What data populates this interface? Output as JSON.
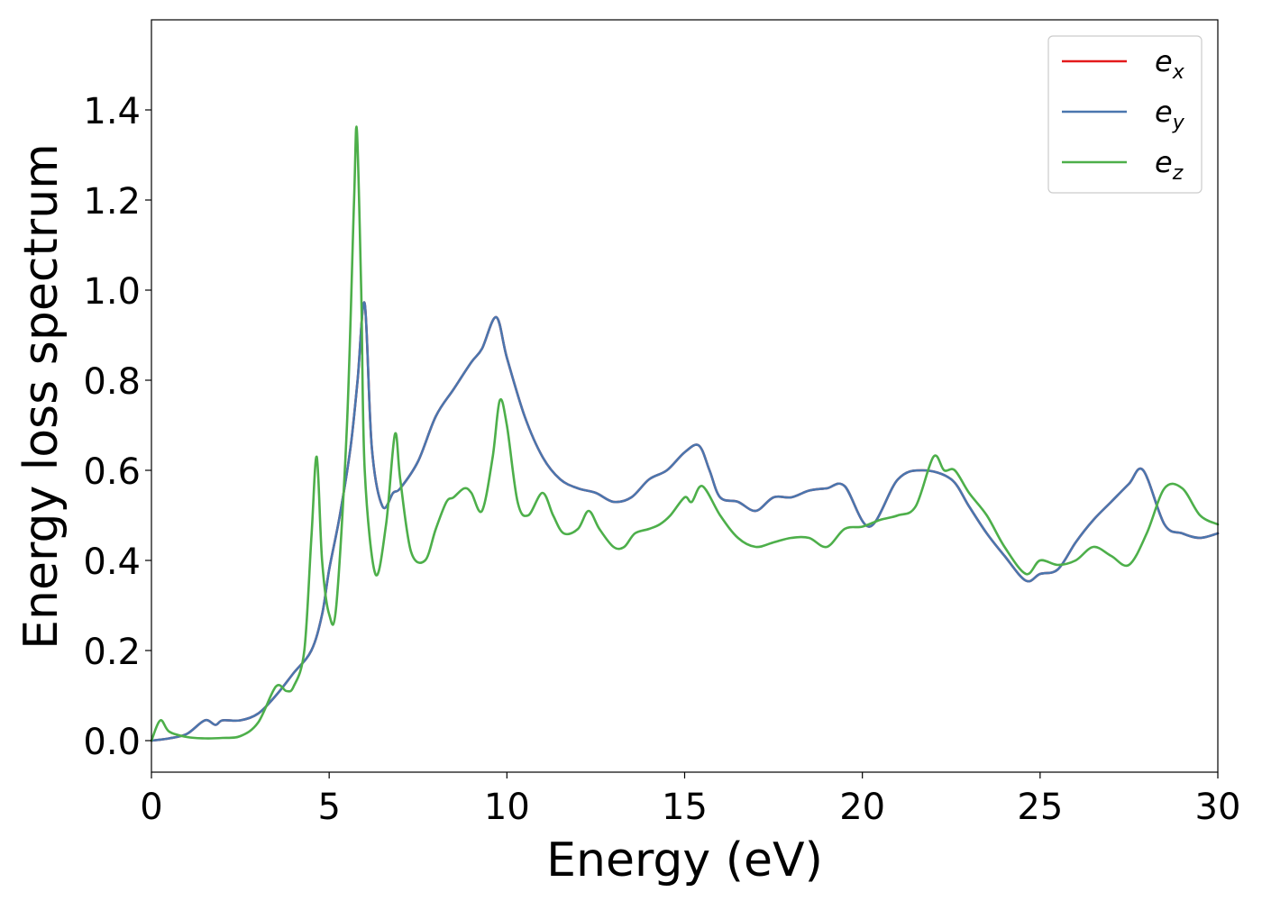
{
  "chart_data": {
    "type": "line",
    "title": "",
    "xlabel": "Energy (eV)",
    "ylabel": "Energy loss spectrum",
    "xlim": [
      0,
      30
    ],
    "ylim": [
      -0.07,
      1.6
    ],
    "xticks": [
      "0",
      "5",
      "10",
      "15",
      "20",
      "25",
      "30"
    ],
    "yticks": [
      "0.0",
      "0.2",
      "0.4",
      "0.6",
      "0.8",
      "1.0",
      "1.2",
      "1.4"
    ],
    "grid": false,
    "legend_position": "top-right",
    "series": [
      {
        "name": "e_x",
        "label_base": "e",
        "label_sub": "x",
        "color": "#e41a1c",
        "x": [
          0,
          0.5,
          1,
          1.5,
          1.8,
          2,
          2.5,
          3,
          3.5,
          4,
          4.5,
          4.8,
          5,
          5.3,
          5.6,
          5.8,
          6,
          6.2,
          6.5,
          6.8,
          7,
          7.5,
          8,
          8.5,
          9,
          9.3,
          9.7,
          10,
          10.5,
          11,
          11.5,
          12,
          12.5,
          13,
          13.5,
          14,
          14.5,
          15,
          15.4,
          15.7,
          16,
          16.5,
          17,
          17.5,
          18,
          18.5,
          19,
          19.5,
          20.2,
          21,
          21.7,
          22.5,
          23,
          23.5,
          24,
          24.6,
          25,
          25.5,
          26,
          26.5,
          27,
          27.5,
          27.9,
          28.5,
          29,
          29.5,
          30
        ],
        "y": [
          0,
          0.005,
          0.015,
          0.045,
          0.035,
          0.045,
          0.045,
          0.06,
          0.1,
          0.15,
          0.2,
          0.28,
          0.38,
          0.5,
          0.65,
          0.8,
          0.97,
          0.65,
          0.52,
          0.55,
          0.56,
          0.62,
          0.72,
          0.78,
          0.84,
          0.87,
          0.94,
          0.85,
          0.72,
          0.63,
          0.58,
          0.56,
          0.55,
          0.53,
          0.54,
          0.58,
          0.6,
          0.64,
          0.655,
          0.6,
          0.54,
          0.53,
          0.51,
          0.54,
          0.54,
          0.555,
          0.56,
          0.565,
          0.475,
          0.58,
          0.6,
          0.58,
          0.52,
          0.46,
          0.41,
          0.355,
          0.37,
          0.38,
          0.44,
          0.49,
          0.53,
          0.57,
          0.6,
          0.48,
          0.46,
          0.45,
          0.46
        ]
      },
      {
        "name": "e_y",
        "label_base": "e",
        "label_sub": "y",
        "color": "#4a76ae",
        "x": [
          0,
          0.5,
          1,
          1.5,
          1.8,
          2,
          2.5,
          3,
          3.5,
          4,
          4.5,
          4.8,
          5,
          5.3,
          5.6,
          5.8,
          6,
          6.2,
          6.5,
          6.8,
          7,
          7.5,
          8,
          8.5,
          9,
          9.3,
          9.7,
          10,
          10.5,
          11,
          11.5,
          12,
          12.5,
          13,
          13.5,
          14,
          14.5,
          15,
          15.4,
          15.7,
          16,
          16.5,
          17,
          17.5,
          18,
          18.5,
          19,
          19.5,
          20.2,
          21,
          21.7,
          22.5,
          23,
          23.5,
          24,
          24.6,
          25,
          25.5,
          26,
          26.5,
          27,
          27.5,
          27.9,
          28.5,
          29,
          29.5,
          30
        ],
        "y": [
          0,
          0.005,
          0.015,
          0.045,
          0.035,
          0.045,
          0.045,
          0.06,
          0.1,
          0.15,
          0.2,
          0.28,
          0.38,
          0.5,
          0.65,
          0.8,
          0.97,
          0.65,
          0.52,
          0.55,
          0.56,
          0.62,
          0.72,
          0.78,
          0.84,
          0.87,
          0.94,
          0.85,
          0.72,
          0.63,
          0.58,
          0.56,
          0.55,
          0.53,
          0.54,
          0.58,
          0.6,
          0.64,
          0.655,
          0.6,
          0.54,
          0.53,
          0.51,
          0.54,
          0.54,
          0.555,
          0.56,
          0.565,
          0.475,
          0.58,
          0.6,
          0.58,
          0.52,
          0.46,
          0.41,
          0.355,
          0.37,
          0.38,
          0.44,
          0.49,
          0.53,
          0.57,
          0.6,
          0.48,
          0.46,
          0.45,
          0.46
        ]
      },
      {
        "name": "e_z",
        "label_base": "e",
        "label_sub": "z",
        "color": "#4daf4a",
        "x": [
          0,
          0.25,
          0.5,
          1,
          1.5,
          2,
          2.5,
          3,
          3.5,
          3.8,
          4,
          4.3,
          4.5,
          4.65,
          4.8,
          5,
          5.2,
          5.5,
          5.7,
          5.78,
          5.9,
          6,
          6.3,
          6.6,
          6.85,
          7,
          7.3,
          7.7,
          8,
          8.3,
          8.5,
          8.8,
          9,
          9.3,
          9.6,
          9.8,
          10,
          10.3,
          10.6,
          11,
          11.3,
          11.6,
          12,
          12.3,
          12.6,
          13,
          13.3,
          13.6,
          14,
          14.3,
          14.6,
          15,
          15.2,
          15.5,
          16,
          16.5,
          17,
          17.5,
          18,
          18.5,
          19,
          19.5,
          20,
          20.5,
          21,
          21.5,
          22,
          22.3,
          22.6,
          23,
          23.5,
          24,
          24.6,
          25,
          25.5,
          26,
          26.5,
          27,
          27.5,
          28,
          28.5,
          29,
          29.5,
          30
        ],
        "y": [
          0.0,
          0.045,
          0.02,
          0.008,
          0.005,
          0.006,
          0.01,
          0.04,
          0.12,
          0.11,
          0.12,
          0.2,
          0.45,
          0.63,
          0.4,
          0.28,
          0.3,
          0.7,
          1.2,
          1.355,
          1.0,
          0.6,
          0.37,
          0.48,
          0.68,
          0.58,
          0.42,
          0.4,
          0.47,
          0.53,
          0.54,
          0.56,
          0.55,
          0.51,
          0.63,
          0.755,
          0.7,
          0.53,
          0.5,
          0.55,
          0.5,
          0.46,
          0.47,
          0.51,
          0.47,
          0.43,
          0.43,
          0.46,
          0.47,
          0.48,
          0.5,
          0.54,
          0.53,
          0.565,
          0.5,
          0.45,
          0.43,
          0.44,
          0.45,
          0.45,
          0.43,
          0.47,
          0.475,
          0.49,
          0.5,
          0.52,
          0.63,
          0.6,
          0.6,
          0.55,
          0.5,
          0.43,
          0.37,
          0.4,
          0.39,
          0.4,
          0.43,
          0.41,
          0.39,
          0.46,
          0.56,
          0.56,
          0.5,
          0.48
        ]
      }
    ]
  }
}
